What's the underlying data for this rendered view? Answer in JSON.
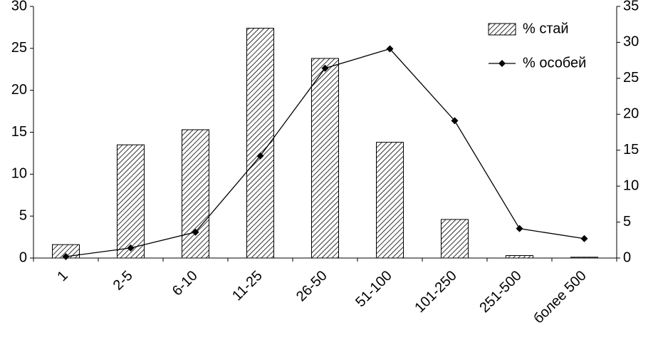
{
  "chart_data": {
    "type": "bar_line",
    "categories": [
      "1",
      "2-5",
      "6-10",
      "11-25",
      "26-50",
      "51-100",
      "101-250",
      "251-500",
      "более 500"
    ],
    "series": [
      {
        "name": "% стай",
        "type": "bar",
        "color": "#000000",
        "values": [
          1.6,
          13.5,
          15.3,
          27.4,
          23.8,
          13.8,
          4.6,
          0.3,
          0.1
        ]
      },
      {
        "name": "% особей",
        "type": "line",
        "axis": "y2",
        "color": "#000000",
        "values": [
          0.2,
          1.4,
          3.6,
          14.2,
          26.4,
          29.1,
          19.1,
          4.1,
          2.7
        ]
      }
    ],
    "ylim": [
      0,
      30
    ],
    "yticks": [
      0,
      5,
      10,
      15,
      20,
      25,
      30
    ],
    "y2lim": [
      0,
      35
    ],
    "y2ticks": [
      0,
      5,
      10,
      15,
      20,
      25,
      30,
      35
    ],
    "legend": "top-right",
    "grid": false
  }
}
